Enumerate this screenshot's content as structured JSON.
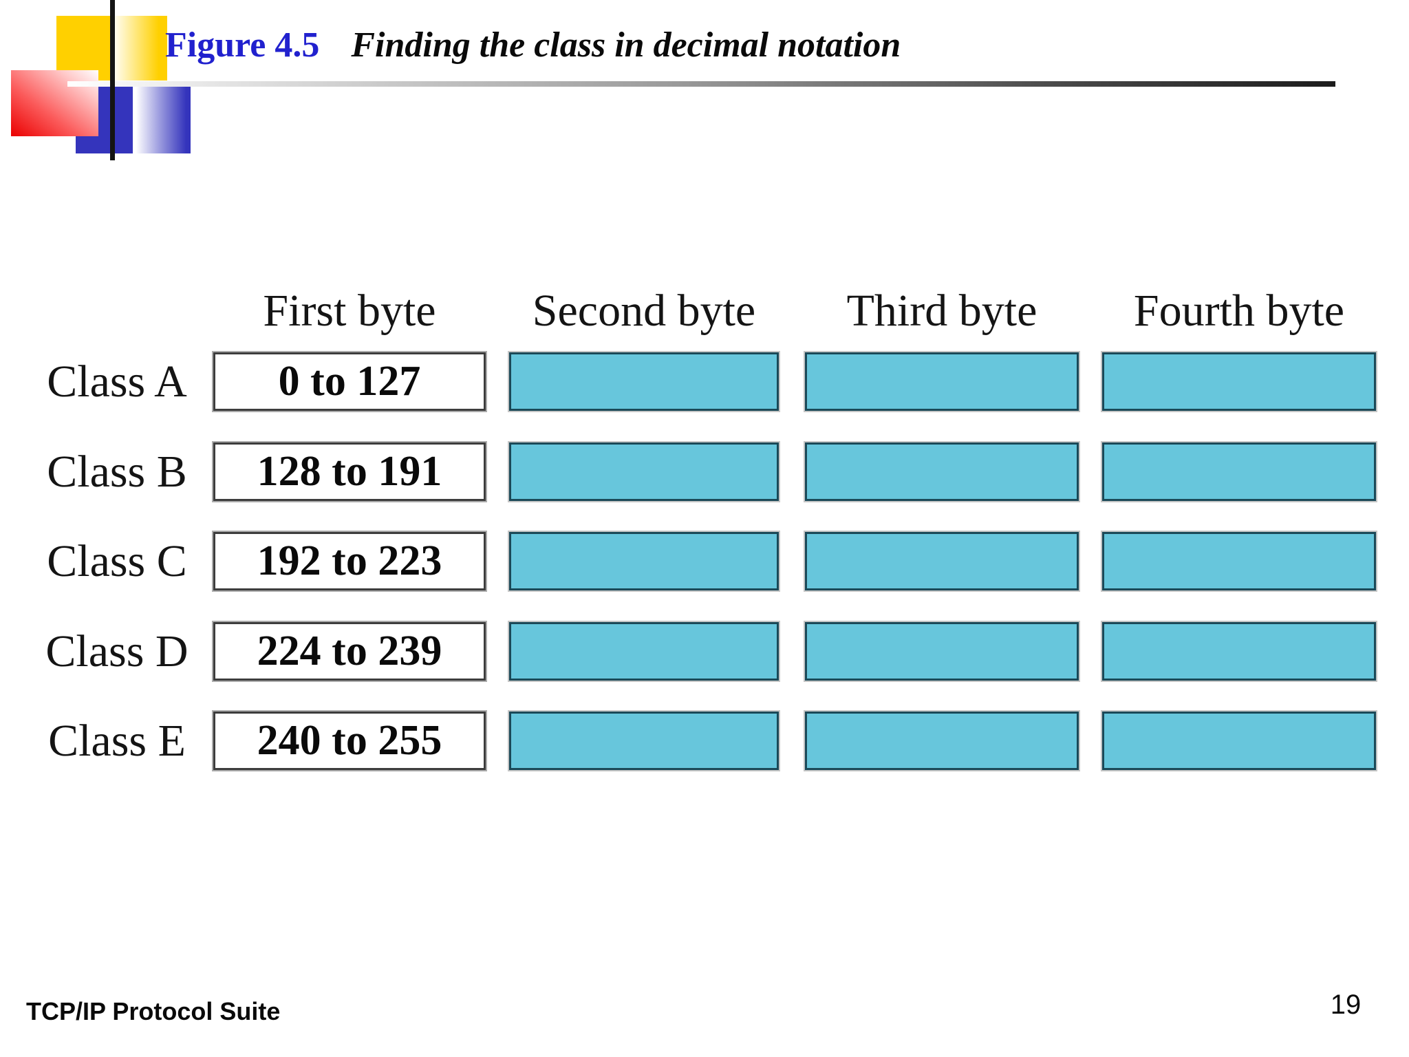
{
  "header": {
    "figure_label": "Figure 4.5",
    "figure_title": "Finding the class in decimal notation"
  },
  "diagram": {
    "column_headers": [
      "First byte",
      "Second byte",
      "Third byte",
      "Fourth byte"
    ],
    "rows": [
      {
        "label": "Class A",
        "first_byte_range": "0 to 127"
      },
      {
        "label": "Class B",
        "first_byte_range": "128 to 191"
      },
      {
        "label": "Class C",
        "first_byte_range": "192 to 223"
      },
      {
        "label": "Class D",
        "first_byte_range": "224 to 239"
      },
      {
        "label": "Class E",
        "first_byte_range": "240 to 255"
      }
    ]
  },
  "footer": {
    "book_title": "TCP/IP Protocol Suite",
    "page_number": "19"
  },
  "colors": {
    "figure_label_blue": "#2121CE",
    "byte_box_fill": "#67C6DC",
    "byte_box_border": "#1B4958",
    "logo_yellow": "#FFD000",
    "logo_blue": "#3434BC",
    "logo_red": "#EA0000"
  }
}
